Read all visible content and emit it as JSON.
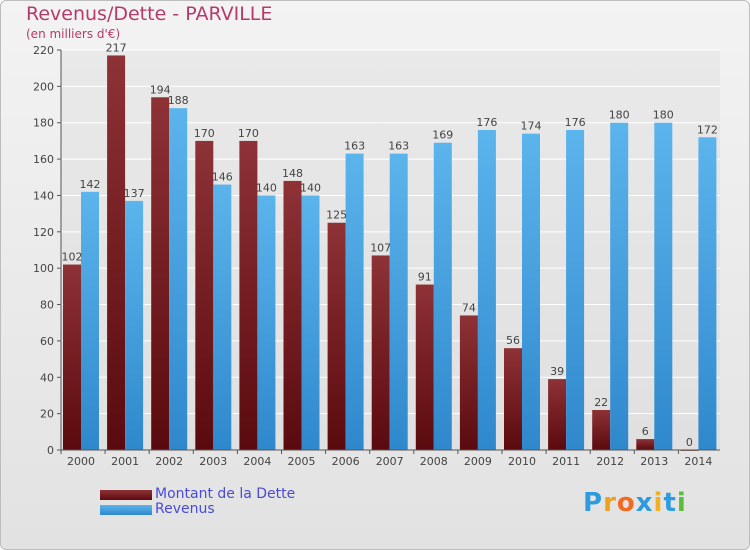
{
  "header": {
    "title": "Revenus/Dette - PARVILLE",
    "subtitle": "(en milliers d'€)"
  },
  "legend": [
    {
      "label": "Montant de la Dette",
      "color": "#7a1e22"
    },
    {
      "label": "Revenus",
      "color": "#4aa6e4"
    }
  ],
  "logo": {
    "text": "Proxiti",
    "letters": [
      "P",
      "r",
      "o",
      "x",
      "i",
      "t",
      "i"
    ],
    "colors": [
      "#2d9be0",
      "#f0a020",
      "#f06a20",
      "#2d9be0",
      "#f0b020",
      "#2d9be0",
      "#5bbd3a"
    ]
  },
  "chart_data": {
    "type": "bar",
    "title": "Revenus/Dette - PARVILLE",
    "subtitle": "(en milliers d'€)",
    "xlabel": "",
    "ylabel": "",
    "categories": [
      "2000",
      "2001",
      "2002",
      "2003",
      "2004",
      "2005",
      "2006",
      "2007",
      "2008",
      "2009",
      "2010",
      "2011",
      "2012",
      "2013",
      "2014"
    ],
    "series": [
      {
        "name": "Montant de la Dette",
        "color": "#7a1e22",
        "values": [
          102,
          217,
          194,
          170,
          170,
          148,
          125,
          107,
          91,
          74,
          56,
          39,
          22,
          6,
          0
        ]
      },
      {
        "name": "Revenus",
        "color": "#4aa6e4",
        "values": [
          142,
          137,
          188,
          146,
          140,
          140,
          163,
          163,
          169,
          176,
          174,
          176,
          180,
          180,
          172
        ]
      }
    ],
    "ylim": [
      0,
      220
    ],
    "yticks": [
      0,
      20,
      40,
      60,
      80,
      100,
      120,
      140,
      160,
      180,
      200,
      220
    ],
    "grid": true,
    "legend_position": "bottom-left"
  }
}
